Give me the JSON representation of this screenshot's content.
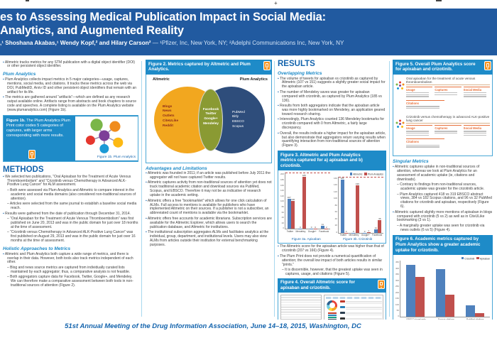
{
  "colors": {
    "header_blue": "#215aa0",
    "band_blue": "#1e8bc8",
    "heading_blue": "#1464ad",
    "venn_left": "#f2a71f",
    "venn_middle": "#8a9a33",
    "venn_right": "#2e4d7b",
    "bar_blue": "#4f81bd",
    "bar_red": "#c0504d",
    "ar_orange": "#f6921e"
  },
  "icons": {
    "ar_phone": "orange-smartphone-ar-marker",
    "plum_print": "plum-print-flower",
    "altmetric_donut": "altmetric-donut-badge"
  },
  "header": {
    "title_line1": "es to Assessing Medical Publication Impact in Social Media:",
    "title_line2": "Analytics, and Augmented Reality",
    "authors": ",¹ Shoshana Akabas,¹ Wendy Kopf,² and Hilary Carson²",
    "affiliations": " — ¹Pfizer, Inc, New York, NY; ²Adelphi Communications Inc, New York, NY"
  },
  "col1": {
    "intro_bullets": [
      {
        "level": 1,
        "text": "Altmetric tracks metrics for any STM publication with a digital object identifier (DOI) or other persistent object identifier."
      }
    ],
    "plum_heading": "Plum Analytics",
    "plum_bullets": [
      {
        "level": 1,
        "text": "Plum Analytics collects impact metrics in 5 major categories—usage, captures, mentions, social media, and citations. It tracks these metrics across the web via DOI, PubMedID, Arxiv ID and other persistent object identifiers that remain with an artifact for its life."
      },
      {
        "level": 1,
        "text": "The metrics are gathered around “artifacts”—which are defined as any research output available online. Artifacts range from abstracts and book chapters to source code and speeches. A complete listing is available on the Plum Analytics website (www.plumanalytics.com) (Figure 1b)."
      }
    ],
    "figure1b": {
      "label": "Figure 1b.",
      "text": "The Plum Analytics Plum Print color codes 5 categories of captures, with larger arms corresponding with more results.",
      "caption": "Figure 1b. Plum Analytics"
    },
    "methods_heading": "METHODS",
    "methods_bullets": [
      {
        "level": 1,
        "text": "We selected two publications, “Oral Apixaban for the Treatment of Acute Venous Thromboembolism” and “Crizotinib versus Chemotherapy in Advanced ALK-Positive Lung Cancer” for ALM assessment."
      },
      {
        "level": 2,
        "text": "Both were assessed via Plum Analytics and Altmetric to compare interest in the academic and social media domains (also considered non-traditional sources of attention)."
      },
      {
        "level": 2,
        "text": "Articles were selected from the same journal to establish a baseline social media reach."
      },
      {
        "level": 1,
        "text": "Results were gathered from the date of publication through December 31, 2014."
      },
      {
        "level": 2,
        "text": "“Oral Apixaban for the Treatment of Acute Venous Thromboembolism” was first published on June 20, 2013 and was in the public domain for just over 18 months at the time of assessment."
      },
      {
        "level": 2,
        "text": "“Crizotinib versus Chemotherapy in Advanced ALK-Positive Lung Cancer” was first published on August 29, 2013 and was in the public domain for just over 16 months at the time of assessment."
      }
    ],
    "holistic_heading": "Holistic Approaches to Metrics",
    "holistic_bullets": [
      {
        "level": 1,
        "text": "Altmetric and Plum Analytics both capture a wide range of metrics, and there is overlap in their data. However, both tools also track metrics independent of each other."
      },
      {
        "level": 2,
        "text": "Blog and news source metrics are captured from individually curated lists maintained by each aggregator; thus, a comparative analysis is not feasible."
      },
      {
        "level": 2,
        "text": "Both aggregators capture data for Facebook, Twitter, Google+, and Mendeley. We can therefore make a comparative assessment between both tools in non-traditional sources of attention (Figure 2)."
      }
    ]
  },
  "col2": {
    "figure2": {
      "title": "Figure 2. Metrics captured by Altmetric and Plum Analytics.",
      "venn": {
        "left_label": "Altmetric",
        "right_label": "Plum Analytics",
        "left_items": [
          "Blogs",
          "News",
          "Outlets",
          "CiteULike",
          "Reddit"
        ],
        "middle_items": [
          "Facebook",
          "Twitter",
          "Google+",
          "Mendeley"
        ],
        "right_items": [
          "PubMed",
          "Bitly",
          "EBSCO",
          "Scopus"
        ]
      }
    },
    "adv_heading": "Advantages and Limitations",
    "adv_bullets": [
      {
        "level": 1,
        "text": "Altmetric was founded in 2011; if an article was published before July 2011 the aggregator will not have captured Twitter results."
      },
      {
        "level": 1,
        "text": "Altmetric captures activity from non-traditional sources of attention yet does not track traditional academic citation and download sources via PubMed, Scopus, and EBSCO. Therefore it may not be as indicative of research uptake in the academic setting."
      },
      {
        "level": 1,
        "text": "Altmetric offers a free “bookmarklet” which allows for one click calculation of ALMs. Full access to mentions is available for publishers who have implemented Altmetric on their sources. If a publisher is not a subscriber, an abbreviated count of mentions is available via the bookmarklet."
      },
      {
        "level": 1,
        "text": "Altmetric offers free accounts for academic librarians. Subscription services are available for the Altmetric Explorer, which allows users to search the publication database, and Altmetric for institutions."
      },
      {
        "level": 1,
        "text": "The institutional subscription aggregates ALMs and facilitates analytics at the individual, group, department, and institutional levels. Users may also view ALMs from articles outside their institution for external benchmarking purposes."
      }
    ]
  },
  "col3": {
    "results_heading": "RESULTS",
    "overlapping_heading": "Overlapping Metrics",
    "overlap_bullets": [
      {
        "level": 1,
        "text": "The volume of tweets for apixaban vs crizotinib as captured by Altmetric (107 vs 151) suggests a slightly greater social impact for the apixaban article."
      },
      {
        "level": 1,
        "text": "The number of Mendeley saves was greater for apixaban compared with crizotinib, as captured by Plum Analytics (185 vs 136)."
      },
      {
        "level": 1,
        "text": "Results from both aggregators indicate that the apixaban article was more highly bookmarked on Mendeley, an application geared toward research sharing."
      },
      {
        "level": 1,
        "text": "Interestingly, Plum Analytics counted 136 Mendeley bookmarks for crizotinib compared with 0 from Altmetric, a fairly large discrepancy."
      },
      {
        "level": 1,
        "text": "Overall, the results indicate a higher impact for the apixaban article, but also demonstrate that aggregators return varying results when quantifying interaction from non-traditional sources of attention (Figure 3)."
      }
    ],
    "figure3": {
      "title": "Figure 3. Altmetric and Plum Analytics metrics captured for a) apixaban and b) crizotinib."
    },
    "post_bullets": [
      {
        "level": 1,
        "text": "The Altmetric score for the apixaban article was higher than that of crizotinib (207 vs 166) (Figure 4)."
      },
      {
        "level": 1,
        "text": "The Plum Print does not provide a numerical quantification of attention; the overall low impact of both articles results in similar “prints.”"
      },
      {
        "level": 2,
        "text": "It is discernible, however, that the greatest uptake was seen in captures, usage, and citations (Figure 5)."
      }
    ],
    "figure4": {
      "title": "Figure 4. Overall Altmetric score for apixaban and crizotinib."
    }
  },
  "col4": {
    "figure5": {
      "title": "Figure 5. Overall Plum Analytics score for apixaban and crizotinib.",
      "panels": [
        {
          "title": "Oral apixaban for the treatment of acute venous thromboembolism",
          "boxes": [
            {
              "header": "Usage",
              "lines": 3
            },
            {
              "header": "Captures",
              "lines": 2
            },
            {
              "header": "Social Media",
              "lines": 3
            }
          ],
          "extra_box": {
            "header": "Citations",
            "lines": 2
          }
        },
        {
          "title": "Crizotinib versus chemotherapy in advanced ALK-positive lung cancer",
          "boxes": [
            {
              "header": "Usage",
              "lines": 3
            },
            {
              "header": "Captures",
              "lines": 2
            },
            {
              "header": "Social Media",
              "lines": 3
            }
          ],
          "extra_box": {
            "header": "Citations",
            "lines": 2
          }
        }
      ]
    },
    "singular_heading": "Singular Metrics",
    "singular_bullets": [
      {
        "level": 1,
        "text": "Altmetric captures uptake in non-traditional sources of attention, whereas we look at Plum Analytics for an assessment of academic uptake (ie, citations and downloads)."
      },
      {
        "level": 2,
        "text": "Contrary to findings from non-traditional sources, academic uptake was greater for the crizotinib article."
      },
      {
        "level": 2,
        "text": "Plum Analytics captured 418 vs 319 EBSCO abstract views, 384 vs 182 Scopus citations, and 96 vs 32 PubMed citations for crizotinib and apixaban, respectively (Figure 6)."
      },
      {
        "level": 1,
        "text": "Altmetric captured slightly more mentions of apixaban in blogs compared with crizotinib (5 vs 2) as well as in CiteULike bookmarking (3 vs 1)."
      },
      {
        "level": 2,
        "text": "A marginally greater uptake was seen for crizotinib via news outlets (6 vs 5) (Figure 4)."
      }
    ],
    "figure6": {
      "title": "Figure 6. Academic metrics captured by Plum Analytics show a greater academic uptake for crizotinib."
    }
  },
  "footer": "51st Annual Meeting of the Drug Information Association, June 14–18, 2015, Washington, DC",
  "chart_data": [
    {
      "id": "figure3a",
      "type": "bar",
      "title": "Figure 3a. Apixaban",
      "categories": [
        "Twitter",
        "Mendeley",
        "Google+",
        "Facebook"
      ],
      "series": [
        {
          "name": "Altmetric",
          "color": "#4f81bd",
          "values": [
            107,
            0,
            0,
            11
          ]
        },
        {
          "name": "Plum Analytics",
          "color": "#c0504d",
          "values": [
            100,
            185,
            0,
            2
          ]
        }
      ],
      "ylim": [
        0,
        200
      ],
      "yticks": [
        0,
        20,
        40,
        60,
        80,
        100,
        120,
        140,
        160,
        180,
        200
      ],
      "legend": false,
      "show_values": true,
      "dashed_top": true
    },
    {
      "id": "figure3b",
      "type": "bar",
      "title": "Figure 3b. Crizotinib",
      "categories": [
        "Twitter",
        "Mendeley",
        "Google+",
        "Facebook"
      ],
      "series": [
        {
          "name": "Altmetric",
          "color": "#4f81bd",
          "values": [
            151,
            0,
            0,
            11
          ]
        },
        {
          "name": "Plum Analytics",
          "color": "#c0504d",
          "values": [
            0,
            136,
            1,
            36
          ]
        }
      ],
      "ylim": [
        0,
        160
      ],
      "yticks": [
        0,
        20,
        40,
        60,
        80,
        100,
        120,
        140,
        160
      ],
      "legend": true,
      "show_values": true,
      "dashed_top": true
    },
    {
      "id": "figure6",
      "type": "bar",
      "title": "Figure 6",
      "categories": [
        "EBSCO downloads",
        "Scopus citations",
        "PubMed citations"
      ],
      "series": [
        {
          "name": "Crizotinib",
          "color": "#4f81bd",
          "values": [
            418,
            384,
            96
          ]
        },
        {
          "name": "Apixaban",
          "color": "#c0504d",
          "values": [
            319,
            182,
            32
          ]
        }
      ],
      "ylim": [
        0,
        450
      ],
      "yticks": [
        0,
        50,
        100,
        150,
        200,
        250,
        300,
        350,
        400,
        450
      ],
      "legend": true,
      "show_values": false,
      "dashed_top": false
    }
  ]
}
